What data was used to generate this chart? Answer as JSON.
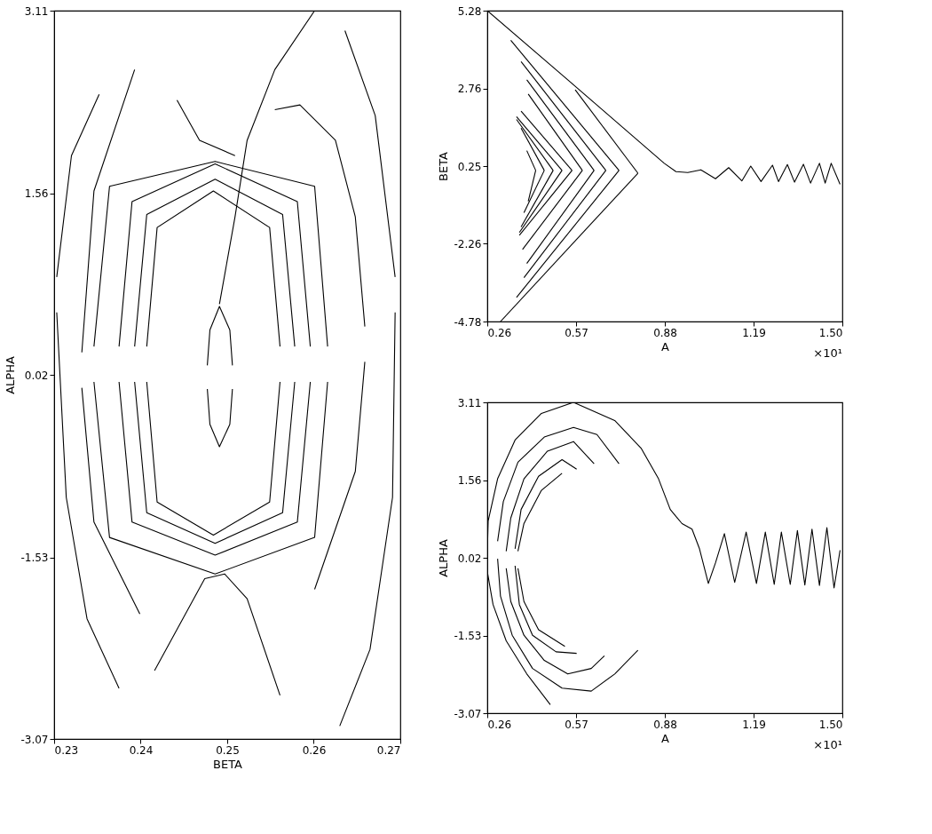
{
  "chart_data": [
    {
      "type": "line",
      "xlabel": "BETA",
      "ylabel": "ALPHA",
      "grid": false,
      "xlim": [
        0.23,
        0.27
      ],
      "ylim": [
        -3.07,
        3.11
      ],
      "xticks": [
        {
          "value": 0.23,
          "label": "0.23"
        },
        {
          "value": 0.24,
          "label": "0.24"
        },
        {
          "value": 0.25,
          "label": "0.25"
        },
        {
          "value": 0.26,
          "label": "0.26"
        },
        {
          "value": 0.27,
          "label": "0.27"
        }
      ],
      "yticks": [
        {
          "value": -3.07,
          "label": "-3.07"
        },
        {
          "value": -1.53,
          "label": "-1.53"
        },
        {
          "value": 0.02,
          "label": "0.02"
        },
        {
          "value": 1.56,
          "label": "1.56"
        },
        {
          "value": 3.11,
          "label": "3.11"
        }
      ],
      "series": [
        {
          "color": "#000000",
          "x": [
            0.2477,
            0.248,
            0.2491,
            0.2503,
            0.2506
          ],
          "values": [
            0.1,
            0.4,
            0.6,
            0.4,
            0.1
          ]
        },
        {
          "color": "#000000",
          "x": [
            0.2477,
            0.248,
            0.2491,
            0.2503,
            0.2506
          ],
          "values": [
            -0.1,
            -0.4,
            -0.59,
            -0.4,
            -0.1
          ]
        },
        {
          "color": "#000000",
          "x": [
            0.2491,
            0.2509,
            0.2523,
            0.2555,
            0.2601
          ],
          "values": [
            0.62,
            1.36,
            2.01,
            2.61,
            3.11
          ]
        },
        {
          "color": "#000000",
          "x": [
            0.2407,
            0.2419,
            0.2484,
            0.2549,
            0.2561
          ],
          "values": [
            0.26,
            1.27,
            1.58,
            1.27,
            0.26
          ]
        },
        {
          "color": "#000000",
          "x": [
            0.2407,
            0.2419,
            0.2484,
            0.2549,
            0.2561
          ],
          "values": [
            -0.04,
            -1.06,
            -1.34,
            -1.06,
            -0.04
          ]
        },
        {
          "color": "#000000",
          "x": [
            0.2393,
            0.2407,
            0.2486,
            0.2564,
            0.2578
          ],
          "values": [
            0.26,
            1.38,
            1.68,
            1.38,
            0.26
          ]
        },
        {
          "color": "#000000",
          "x": [
            0.2393,
            0.2407,
            0.2486,
            0.2564,
            0.2578
          ],
          "values": [
            -0.04,
            -1.15,
            -1.41,
            -1.15,
            -0.04
          ]
        },
        {
          "color": "#000000",
          "x": [
            0.2375,
            0.239,
            0.2486,
            0.2581,
            0.2596
          ],
          "values": [
            0.26,
            1.49,
            1.81,
            1.49,
            0.26
          ]
        },
        {
          "color": "#000000",
          "x": [
            0.2375,
            0.239,
            0.2486,
            0.2581,
            0.2596
          ],
          "values": [
            -0.04,
            -1.23,
            -1.51,
            -1.23,
            -0.04
          ]
        },
        {
          "color": "#000000",
          "x": [
            0.2346,
            0.2364,
            0.2486,
            0.2601,
            0.2616
          ],
          "values": [
            0.26,
            1.62,
            1.83,
            1.62,
            0.26
          ]
        },
        {
          "color": "#000000",
          "x": [
            0.2346,
            0.2364,
            0.2486,
            0.2601,
            0.2616
          ],
          "values": [
            -0.04,
            -1.36,
            -1.67,
            -1.36,
            -0.04
          ]
        },
        {
          "color": "#000000",
          "x": [
            0.2303,
            0.232,
            0.2352
          ],
          "values": [
            0.85,
            1.88,
            2.4
          ]
        },
        {
          "color": "#000000",
          "x": [
            0.2303,
            0.2314,
            0.2338,
            0.2375
          ],
          "values": [
            0.55,
            -1.02,
            -2.05,
            -2.64
          ]
        },
        {
          "color": "#000000",
          "x": [
            0.2636,
            0.2671,
            0.2694
          ],
          "values": [
            2.94,
            2.22,
            0.85
          ]
        },
        {
          "color": "#000000",
          "x": [
            0.263,
            0.2665,
            0.2691,
            0.2694
          ],
          "values": [
            -2.96,
            -2.31,
            -1.02,
            0.55
          ]
        },
        {
          "color": "#000000",
          "x": [
            0.2555,
            0.2584,
            0.2625,
            0.2648,
            0.2659
          ],
          "values": [
            2.27,
            2.31,
            2.01,
            1.36,
            0.43
          ]
        },
        {
          "color": "#000000",
          "x": [
            0.2601,
            0.2648,
            0.2659
          ],
          "values": [
            -1.8,
            -0.8,
            0.13
          ]
        },
        {
          "color": "#000000",
          "x": [
            0.2332,
            0.2346,
            0.2393
          ],
          "values": [
            0.21,
            1.58,
            2.61
          ]
        },
        {
          "color": "#000000",
          "x": [
            0.2332,
            0.2346,
            0.2399
          ],
          "values": [
            -0.09,
            -1.23,
            -2.01
          ]
        },
        {
          "color": "#000000",
          "x": [
            0.2416,
            0.2474,
            0.2497,
            0.2523,
            0.2561
          ],
          "values": [
            -2.49,
            -1.71,
            -1.67,
            -1.88,
            -2.7
          ]
        },
        {
          "color": "#000000",
          "x": [
            0.2442,
            0.2468,
            0.2509
          ],
          "values": [
            2.35,
            2.01,
            1.88
          ]
        }
      ]
    },
    {
      "type": "line",
      "xlabel": "A",
      "ylabel": "BETA",
      "grid": false,
      "annotations": [
        "×10¹"
      ],
      "xlim": [
        0.26,
        1.5
      ],
      "ylim": [
        -4.78,
        5.28
      ],
      "xticks": [
        {
          "value": 0.26,
          "label": "0.26"
        },
        {
          "value": 0.57,
          "label": "0.57"
        },
        {
          "value": 0.88,
          "label": "0.88"
        },
        {
          "value": 1.19,
          "label": "1.19"
        },
        {
          "value": 1.5,
          "label": "1.50"
        }
      ],
      "yticks": [
        {
          "value": -4.78,
          "label": "-4.78"
        },
        {
          "value": -2.26,
          "label": "-2.26"
        },
        {
          "value": 0.25,
          "label": "0.25"
        },
        {
          "value": 2.76,
          "label": "2.76"
        },
        {
          "value": 5.28,
          "label": "5.28"
        }
      ],
      "series": [
        {
          "color": "#000000",
          "x": [
            0.26,
            0.541,
            0.878,
            0.919,
            0.96,
            1.006,
            1.057,
            1.103,
            1.149,
            1.18,
            1.216,
            1.256,
            1.277,
            1.308,
            1.333,
            1.364,
            1.389,
            1.42,
            1.44,
            1.461,
            1.492
          ],
          "values": [
            5.28,
            3.04,
            0.34,
            0.07,
            0.04,
            0.13,
            -0.16,
            0.2,
            -0.23,
            0.25,
            -0.25,
            0.28,
            -0.25,
            0.3,
            -0.27,
            0.31,
            -0.3,
            0.34,
            -0.3,
            0.34,
            -0.34
          ]
        },
        {
          "color": "#000000",
          "x": [
            0.567,
            0.786
          ],
          "values": [
            2.72,
            0.02
          ]
        },
        {
          "color": "#000000",
          "x": [
            0.306,
            0.786
          ],
          "values": [
            -4.78,
            0.02
          ]
        },
        {
          "color": "#000000",
          "x": [
            0.342,
            0.72
          ],
          "values": [
            4.32,
            0.11
          ]
        },
        {
          "color": "#000000",
          "x": [
            0.362,
            0.72
          ],
          "values": [
            -4.0,
            0.11
          ]
        },
        {
          "color": "#000000",
          "x": [
            0.378,
            0.674
          ],
          "values": [
            3.63,
            0.11
          ]
        },
        {
          "color": "#000000",
          "x": [
            0.388,
            0.674
          ],
          "values": [
            -3.36,
            0.11
          ]
        },
        {
          "color": "#000000",
          "x": [
            0.398,
            0.633
          ],
          "values": [
            3.04,
            0.11
          ]
        },
        {
          "color": "#000000",
          "x": [
            0.398,
            0.633
          ],
          "values": [
            -2.9,
            0.11
          ]
        },
        {
          "color": "#000000",
          "x": [
            0.403,
            0.592
          ],
          "values": [
            2.58,
            0.11
          ]
        },
        {
          "color": "#000000",
          "x": [
            0.383,
            0.592
          ],
          "values": [
            -2.45,
            0.11
          ]
        },
        {
          "color": "#000000",
          "x": [
            0.378,
            0.556
          ],
          "values": [
            2.03,
            0.11
          ]
        },
        {
          "color": "#000000",
          "x": [
            0.372,
            0.556
          ],
          "values": [
            -1.99,
            0.11
          ]
        },
        {
          "color": "#000000",
          "x": [
            0.362,
            0.521
          ],
          "values": [
            1.85,
            0.11
          ]
        },
        {
          "color": "#000000",
          "x": [
            0.372,
            0.521
          ],
          "values": [
            -1.9,
            0.11
          ]
        },
        {
          "color": "#000000",
          "x": [
            0.362,
            0.49
          ],
          "values": [
            1.76,
            0.11
          ]
        },
        {
          "color": "#000000",
          "x": [
            0.378,
            0.49
          ],
          "values": [
            -1.72,
            0.11
          ]
        },
        {
          "color": "#000000",
          "x": [
            0.378,
            0.459
          ],
          "values": [
            1.48,
            0.11
          ]
        },
        {
          "color": "#000000",
          "x": [
            0.388,
            0.459
          ],
          "values": [
            -1.26,
            0.11
          ]
        },
        {
          "color": "#000000",
          "x": [
            0.398,
            0.429
          ],
          "values": [
            0.75,
            0.11
          ]
        },
        {
          "color": "#000000",
          "x": [
            0.403,
            0.429
          ],
          "values": [
            -0.89,
            0.11
          ]
        }
      ]
    },
    {
      "type": "line",
      "xlabel": "A",
      "ylabel": "ALPHA",
      "grid": false,
      "annotations": [
        "×10¹"
      ],
      "xlim": [
        0.26,
        1.5
      ],
      "ylim": [
        -3.07,
        3.11
      ],
      "xticks": [
        {
          "value": 0.26,
          "label": "0.26"
        },
        {
          "value": 0.57,
          "label": "0.57"
        },
        {
          "value": 0.88,
          "label": "0.88"
        },
        {
          "value": 1.19,
          "label": "1.19"
        },
        {
          "value": 1.5,
          "label": "1.50"
        }
      ],
      "yticks": [
        {
          "value": -3.07,
          "label": "-3.07"
        },
        {
          "value": -1.53,
          "label": "-1.53"
        },
        {
          "value": 0.02,
          "label": "0.02"
        },
        {
          "value": 1.56,
          "label": "1.56"
        },
        {
          "value": 3.11,
          "label": "3.11"
        }
      ],
      "series": [
        {
          "color": "#000000",
          "x": [
            0.561,
            0.705,
            0.797,
            0.858,
            0.899,
            0.94,
            0.975,
            1.001,
            1.032,
            1.057,
            1.088,
            1.124,
            1.164,
            1.2,
            1.231,
            1.262,
            1.287,
            1.318,
            1.343,
            1.369,
            1.394,
            1.42,
            1.446,
            1.471,
            1.492
          ],
          "values": [
            3.11,
            2.75,
            2.2,
            1.59,
            0.98,
            0.7,
            0.59,
            0.2,
            -0.49,
            -0.08,
            0.5,
            -0.47,
            0.53,
            -0.49,
            0.53,
            -0.51,
            0.53,
            -0.51,
            0.56,
            -0.52,
            0.59,
            -0.53,
            0.62,
            -0.58,
            0.17
          ]
        },
        {
          "color": "#000000",
          "x": [
            0.26,
            0.263,
            0.296,
            0.357,
            0.449,
            0.561
          ],
          "values": [
            0.1,
            0.75,
            1.59,
            2.36,
            2.89,
            3.11
          ]
        },
        {
          "color": "#000000",
          "x": [
            0.26,
            0.28,
            0.326,
            0.398,
            0.48
          ],
          "values": [
            -0.25,
            -0.91,
            -1.63,
            -2.29,
            -2.9
          ]
        },
        {
          "color": "#000000",
          "x": [
            0.296,
            0.316,
            0.367,
            0.459,
            0.561,
            0.643,
            0.72
          ],
          "values": [
            0.35,
            1.14,
            1.92,
            2.42,
            2.61,
            2.47,
            1.89
          ]
        },
        {
          "color": "#000000",
          "x": [
            0.296,
            0.306,
            0.347,
            0.418,
            0.521,
            0.623,
            0.705,
            0.786
          ],
          "values": [
            0.0,
            -0.74,
            -1.52,
            -2.18,
            -2.57,
            -2.63,
            -2.29,
            -1.82
          ]
        },
        {
          "color": "#000000",
          "x": [
            0.326,
            0.342,
            0.388,
            0.47,
            0.561,
            0.633
          ],
          "values": [
            0.15,
            0.81,
            1.59,
            2.14,
            2.33,
            1.89
          ]
        },
        {
          "color": "#000000",
          "x": [
            0.326,
            0.342,
            0.388,
            0.459,
            0.541,
            0.623,
            0.669
          ],
          "values": [
            -0.19,
            -0.85,
            -1.52,
            -2.02,
            -2.29,
            -2.18,
            -1.93
          ]
        },
        {
          "color": "#000000",
          "x": [
            0.357,
            0.378,
            0.439,
            0.521,
            0.572
          ],
          "values": [
            0.2,
            0.98,
            1.64,
            1.97,
            1.78
          ]
        },
        {
          "color": "#000000",
          "x": [
            0.357,
            0.372,
            0.418,
            0.5,
            0.572
          ],
          "values": [
            -0.14,
            -0.91,
            -1.52,
            -1.85,
            -1.88
          ]
        },
        {
          "color": "#000000",
          "x": [
            0.367,
            0.388,
            0.449,
            0.521
          ],
          "values": [
            0.15,
            0.7,
            1.36,
            1.7
          ]
        },
        {
          "color": "#000000",
          "x": [
            0.367,
            0.388,
            0.439,
            0.531
          ],
          "values": [
            -0.19,
            -0.85,
            -1.41,
            -1.74
          ]
        }
      ]
    }
  ]
}
